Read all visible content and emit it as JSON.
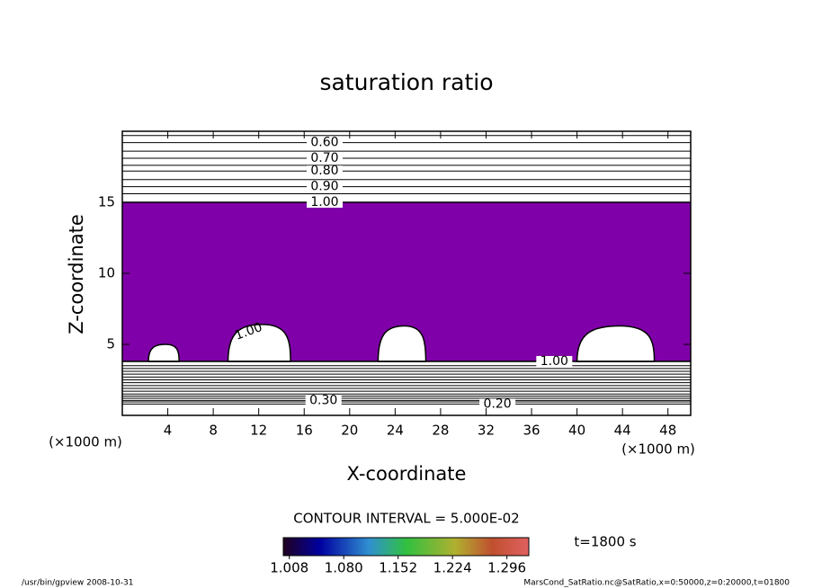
{
  "chart_data": {
    "type": "contour",
    "title": "saturation ratio",
    "x_label": "X-coordinate",
    "y_label": "Z-coordinate",
    "x_unit_left": "(×1000 m)",
    "x_unit_right": "(×1000 m)",
    "xlim": [
      0,
      50
    ],
    "ylim": [
      0,
      20
    ],
    "xticks": [
      4,
      8,
      12,
      16,
      20,
      24,
      28,
      32,
      36,
      40,
      44,
      48
    ],
    "yticks": [
      5,
      10,
      15
    ],
    "fill": {
      "z0": 3.8,
      "z1": 15,
      "color": "#7f00a8"
    },
    "bumps": [
      {
        "x0": 2.3,
        "x1": 5,
        "top": 5
      },
      {
        "x0": 9.3,
        "x1": 14.8,
        "top": 6.4,
        "label": "1.00"
      },
      {
        "x0": 22.5,
        "x1": 26.7,
        "top": 6.3
      },
      {
        "x0": 40,
        "x1": 46.8,
        "top": 6.3
      }
    ],
    "contours": [
      {
        "level": 0.55,
        "z": 19.7
      },
      {
        "level": 0.6,
        "z": 19.2,
        "label": "0.60",
        "label_x": 17.8
      },
      {
        "level": 0.65,
        "z": 18.6
      },
      {
        "level": 0.7,
        "z": 18.1,
        "label": "0.70",
        "label_x": 17.8
      },
      {
        "level": 0.75,
        "z": 17.6
      },
      {
        "level": 0.8,
        "z": 17.2,
        "label": "0.80",
        "label_x": 17.8
      },
      {
        "level": 0.85,
        "z": 16.6
      },
      {
        "level": 0.9,
        "z": 16.1,
        "label": "0.90",
        "label_x": 17.8
      },
      {
        "level": 0.95,
        "z": 15.6
      },
      {
        "level": 1.0,
        "z": 15.0,
        "label": "1.00",
        "label_x": 17.8
      },
      {
        "level": 1.0,
        "z": 3.8,
        "label": "1.00",
        "label_x": 38
      },
      {
        "level": 0.95,
        "z": 3.5
      },
      {
        "level": 0.9,
        "z": 3.3
      },
      {
        "level": 0.85,
        "z": 3.1
      },
      {
        "level": 0.8,
        "z": 2.9
      },
      {
        "level": 0.75,
        "z": 2.7
      },
      {
        "level": 0.7,
        "z": 2.5
      },
      {
        "level": 0.65,
        "z": 2.3
      },
      {
        "level": 0.6,
        "z": 2.1
      },
      {
        "level": 0.55,
        "z": 1.9
      },
      {
        "level": 0.5,
        "z": 1.7
      },
      {
        "level": 0.45,
        "z": 1.5
      },
      {
        "level": 0.4,
        "z": 1.35
      },
      {
        "level": 0.35,
        "z": 1.2
      },
      {
        "level": 0.3,
        "z": 1.05,
        "label": "0.30",
        "label_x": 17.7
      },
      {
        "level": 0.25,
        "z": 0.95
      },
      {
        "level": 0.2,
        "z": 0.8,
        "label": "0.20",
        "label_x": 33
      }
    ],
    "contour_interval": "CONTOUR INTERVAL = 5.000E-02",
    "colorbar": {
      "clim": [
        1.0,
        1.325
      ],
      "ticks": [
        1.008,
        {
          "value": 1.08,
          "label": "1.080"
        },
        1.152,
        1.224,
        1.296
      ]
    },
    "time_label": "t=1800 s",
    "footer_left": "/usr/bin/gpview   2008-10-31",
    "footer_right": "MarsCond_SatRatio.nc@SatRatio,x=0:50000,z=0:20000,t=01800"
  }
}
